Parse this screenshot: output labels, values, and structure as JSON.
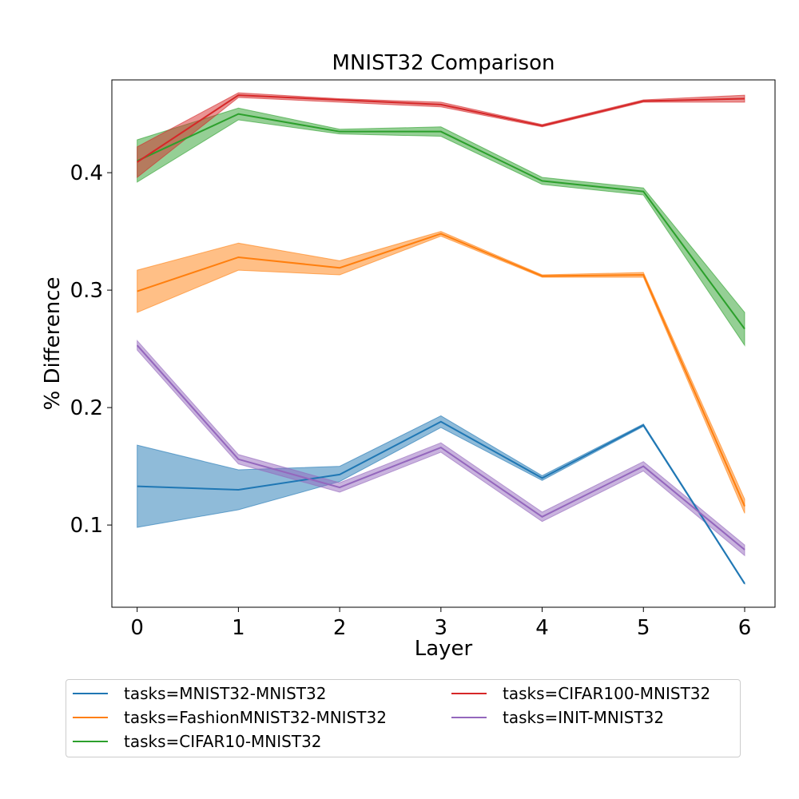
{
  "chart_data": {
    "type": "line",
    "title": "MNIST32 Comparison",
    "xlabel": "Layer",
    "ylabel": "% Difference",
    "x": [
      0,
      1,
      2,
      3,
      4,
      5,
      6
    ],
    "xlim": [
      -0.25,
      6.3
    ],
    "ylim": [
      0.03,
      0.479
    ],
    "xticks": [
      0,
      1,
      2,
      3,
      4,
      5,
      6
    ],
    "yticks": [
      0.1,
      0.2,
      0.3,
      0.4
    ],
    "ytick_labels": [
      "0.1",
      "0.2",
      "0.3",
      "0.4"
    ],
    "grid": false,
    "legend_placement": "bottom, outside plot, two columns",
    "series": [
      {
        "name": "tasks=MNIST32-MNIST32",
        "color": "#1f77b4",
        "values": [
          0.133,
          0.13,
          0.143,
          0.188,
          0.14,
          0.185,
          0.05
        ],
        "lower": [
          0.098,
          0.113,
          0.137,
          0.183,
          0.138,
          0.184,
          0.05
        ],
        "upper": [
          0.168,
          0.147,
          0.15,
          0.193,
          0.142,
          0.186,
          0.051
        ]
      },
      {
        "name": "tasks=FashionMNIST32-MNIST32",
        "color": "#ff7f0e",
        "values": [
          0.299,
          0.328,
          0.319,
          0.348,
          0.312,
          0.313,
          0.116
        ],
        "lower": [
          0.281,
          0.317,
          0.313,
          0.346,
          0.311,
          0.311,
          0.11
        ],
        "upper": [
          0.317,
          0.34,
          0.325,
          0.35,
          0.313,
          0.315,
          0.122
        ]
      },
      {
        "name": "tasks=CIFAR10-MNIST32",
        "color": "#2ca02c",
        "values": [
          0.41,
          0.45,
          0.435,
          0.435,
          0.393,
          0.384,
          0.267
        ],
        "lower": [
          0.392,
          0.445,
          0.433,
          0.431,
          0.39,
          0.381,
          0.253
        ],
        "upper": [
          0.428,
          0.455,
          0.437,
          0.439,
          0.396,
          0.387,
          0.281
        ]
      },
      {
        "name": "tasks=CIFAR100-MNIST32",
        "color": "#d62728",
        "values": [
          0.409,
          0.466,
          0.462,
          0.458,
          0.44,
          0.461,
          0.463
        ],
        "lower": [
          0.396,
          0.464,
          0.46,
          0.456,
          0.439,
          0.46,
          0.46
        ],
        "upper": [
          0.422,
          0.468,
          0.463,
          0.46,
          0.441,
          0.462,
          0.466
        ]
      },
      {
        "name": "tasks=INIT-MNIST32",
        "color": "#9467bd",
        "values": [
          0.253,
          0.156,
          0.132,
          0.166,
          0.107,
          0.15,
          0.079
        ],
        "lower": [
          0.249,
          0.152,
          0.128,
          0.162,
          0.103,
          0.146,
          0.074
        ],
        "upper": [
          0.257,
          0.16,
          0.136,
          0.17,
          0.111,
          0.154,
          0.083
        ]
      }
    ]
  }
}
